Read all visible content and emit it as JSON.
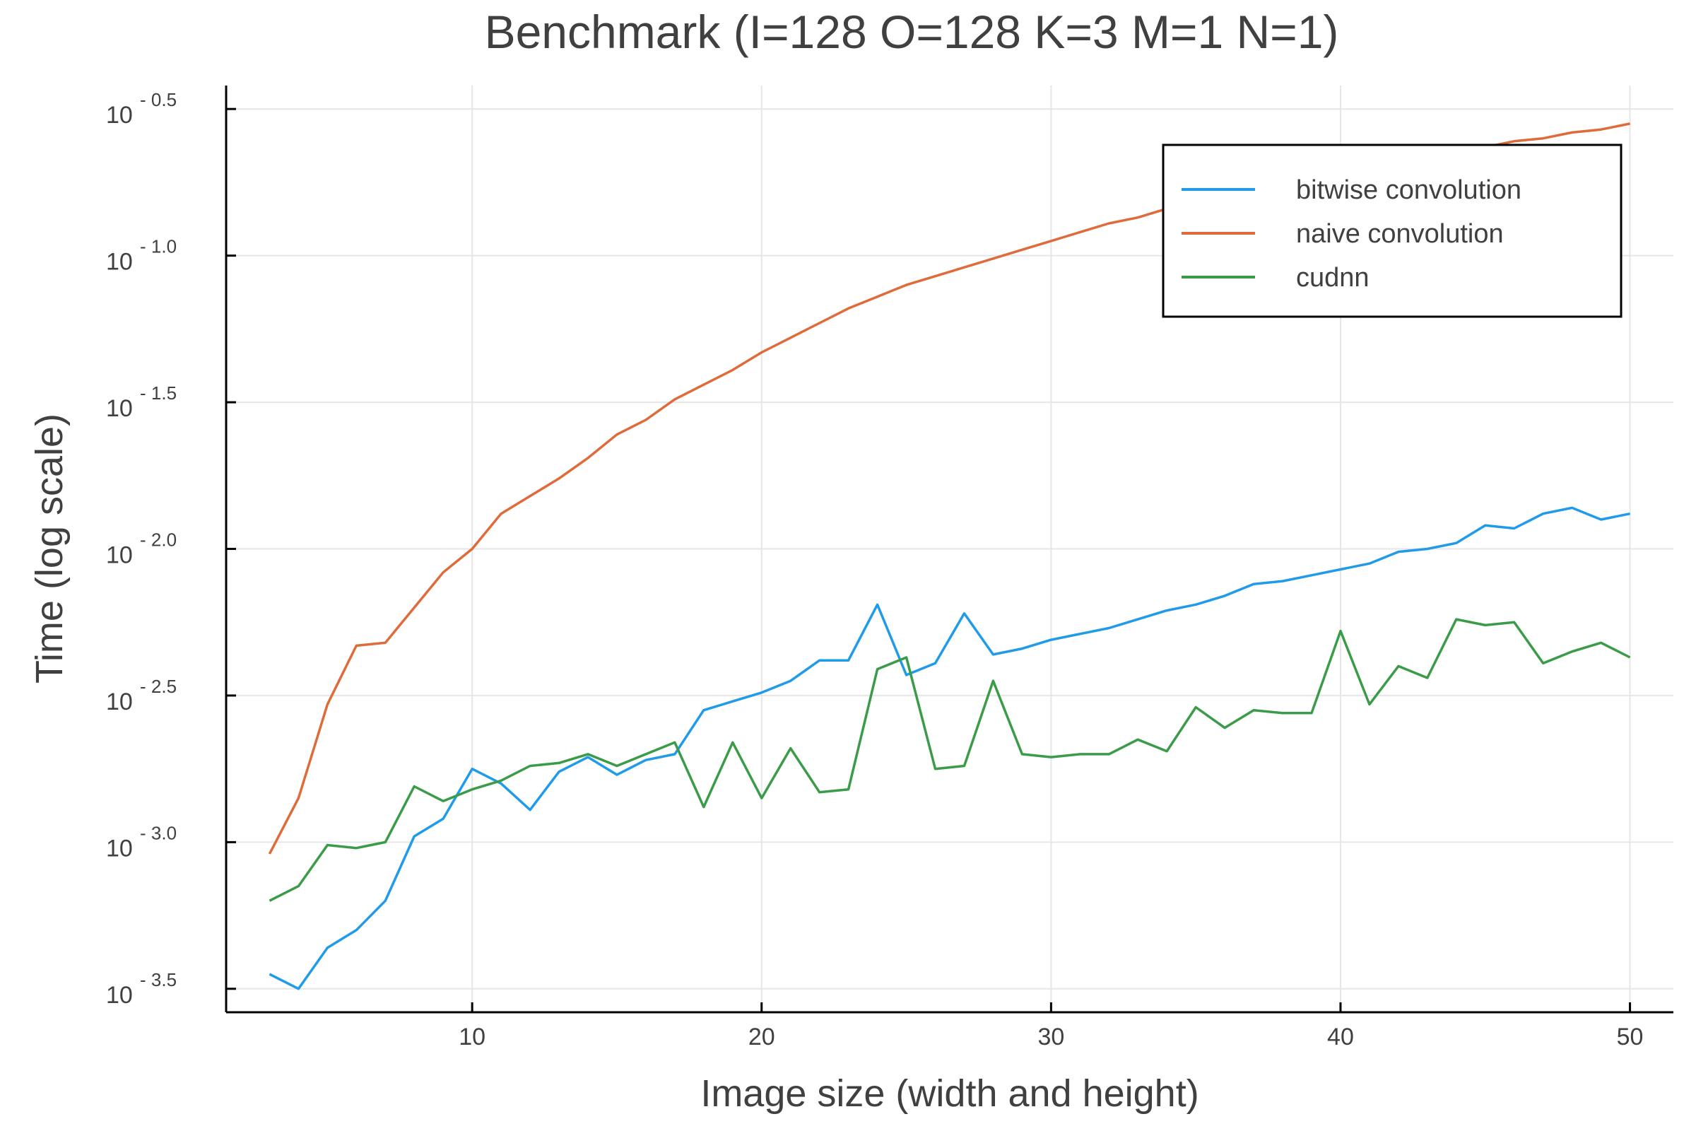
{
  "chart_data": {
    "type": "line",
    "title": "Benchmark (I=128 O=128 K=3 M=1 N=1)",
    "xlabel": "Image size (width and height)",
    "ylabel": "Time (log scale)",
    "yscale": "log10",
    "xlim": [
      1.5,
      51.5
    ],
    "ylim_log10": [
      -3.58,
      -0.42
    ],
    "xticks": [
      10,
      20,
      30,
      40,
      50
    ],
    "xtick_labels": [
      "10",
      "20",
      "30",
      "40",
      "50"
    ],
    "yticks_log10": [
      -0.5,
      -1.0,
      -1.5,
      -2.0,
      -2.5,
      -3.0,
      -3.5
    ],
    "ytick_labels": [
      {
        "base": "10",
        "exp": "- 0.5"
      },
      {
        "base": "10",
        "exp": "- 1.0"
      },
      {
        "base": "10",
        "exp": "- 1.5"
      },
      {
        "base": "10",
        "exp": "- 2.0"
      },
      {
        "base": "10",
        "exp": "- 2.5"
      },
      {
        "base": "10",
        "exp": "- 3.0"
      },
      {
        "base": "10",
        "exp": "- 3.5"
      }
    ],
    "grid": true,
    "legend_position": "top-right",
    "x": [
      3,
      4,
      5,
      6,
      7,
      8,
      9,
      10,
      11,
      12,
      13,
      14,
      15,
      16,
      17,
      18,
      19,
      20,
      21,
      22,
      23,
      24,
      25,
      26,
      27,
      28,
      29,
      30,
      31,
      32,
      33,
      34,
      35,
      36,
      37,
      38,
      39,
      40,
      41,
      42,
      43,
      44,
      45,
      46,
      47,
      48,
      49,
      50
    ],
    "series": [
      {
        "name": "bitwise convolution",
        "color": "#1f9bea",
        "log10_values": [
          -3.45,
          -3.5,
          -3.36,
          -3.3,
          -3.2,
          -2.98,
          -2.92,
          -2.75,
          -2.8,
          -2.89,
          -2.76,
          -2.71,
          -2.77,
          -2.72,
          -2.7,
          -2.55,
          -2.52,
          -2.49,
          -2.45,
          -2.38,
          -2.38,
          -2.19,
          -2.43,
          -2.39,
          -2.22,
          -2.36,
          -2.34,
          -2.31,
          -2.29,
          -2.27,
          -2.24,
          -2.21,
          -2.19,
          -2.16,
          -2.12,
          -2.11,
          -2.09,
          -2.07,
          -2.05,
          -2.01,
          -2.0,
          -1.98,
          -1.92,
          -1.93,
          -1.88,
          -1.86,
          -1.9,
          -1.88
        ]
      },
      {
        "name": "naive convolution",
        "color": "#e06b3a",
        "log10_values": [
          -3.04,
          -2.85,
          -2.53,
          -2.33,
          -2.32,
          -2.2,
          -2.08,
          -2.0,
          -1.88,
          -1.82,
          -1.76,
          -1.69,
          -1.61,
          -1.56,
          -1.49,
          -1.44,
          -1.39,
          -1.33,
          -1.28,
          -1.23,
          -1.18,
          -1.14,
          -1.1,
          -1.07,
          -1.04,
          -1.01,
          -0.98,
          -0.95,
          -0.92,
          -0.89,
          -0.87,
          -0.84,
          -0.82,
          -0.8,
          -0.78,
          -0.76,
          -0.74,
          -0.72,
          -0.7,
          -0.68,
          -0.67,
          -0.65,
          -0.63,
          -0.61,
          -0.6,
          -0.58,
          -0.57,
          -0.55
        ]
      },
      {
        "name": "cudnn",
        "color": "#3a9b48",
        "log10_values": [
          -3.2,
          -3.15,
          -3.01,
          -3.02,
          -3.0,
          -2.81,
          -2.86,
          -2.82,
          -2.79,
          -2.74,
          -2.73,
          -2.7,
          -2.74,
          -2.7,
          -2.66,
          -2.88,
          -2.66,
          -2.85,
          -2.68,
          -2.83,
          -2.82,
          -2.41,
          -2.37,
          -2.75,
          -2.74,
          -2.45,
          -2.7,
          -2.71,
          -2.7,
          -2.7,
          -2.65,
          -2.69,
          -2.54,
          -2.61,
          -2.55,
          -2.56,
          -2.56,
          -2.28,
          -2.53,
          -2.4,
          -2.44,
          -2.24,
          -2.26,
          -2.25,
          -2.39,
          -2.35,
          -2.32,
          -2.37
        ]
      }
    ]
  }
}
